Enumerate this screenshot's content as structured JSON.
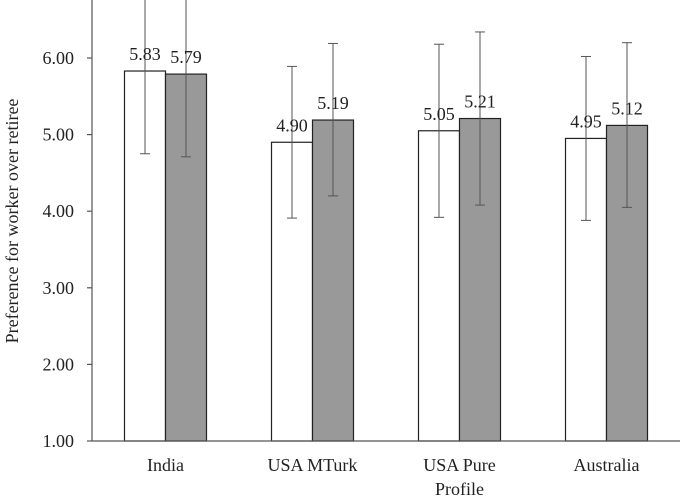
{
  "chart_data": {
    "type": "bar",
    "categories": [
      "India",
      "USA MTurk",
      "USA Pure Profile",
      "Australia"
    ],
    "series": [
      {
        "fill": "#ffffff",
        "values": [
          5.83,
          4.9,
          5.05,
          4.95
        ],
        "error_low": [
          4.75,
          3.91,
          3.92,
          3.88
        ],
        "error_high": [
          6.91,
          5.89,
          6.18,
          6.02
        ]
      },
      {
        "fill": "#999999",
        "values": [
          5.79,
          5.19,
          5.21,
          5.12
        ],
        "error_low": [
          4.71,
          4.2,
          4.08,
          4.05
        ],
        "error_high": [
          6.87,
          6.19,
          6.34,
          6.2
        ]
      }
    ],
    "data_labels": [
      [
        "5.83",
        "5.79"
      ],
      [
        "4.90",
        "5.19"
      ],
      [
        "5.05",
        "5.21"
      ],
      [
        "4.95",
        "5.12"
      ]
    ],
    "ylabel": "Preference for worker over retiree",
    "ylim": [
      1.0,
      6.75
    ],
    "yticks": [
      1.0,
      2.0,
      3.0,
      4.0,
      5.0,
      6.0
    ],
    "ytick_labels": [
      "1.00",
      "2.00",
      "3.00",
      "4.00",
      "5.00",
      "6.00"
    ],
    "grid": false,
    "legend": "none"
  }
}
